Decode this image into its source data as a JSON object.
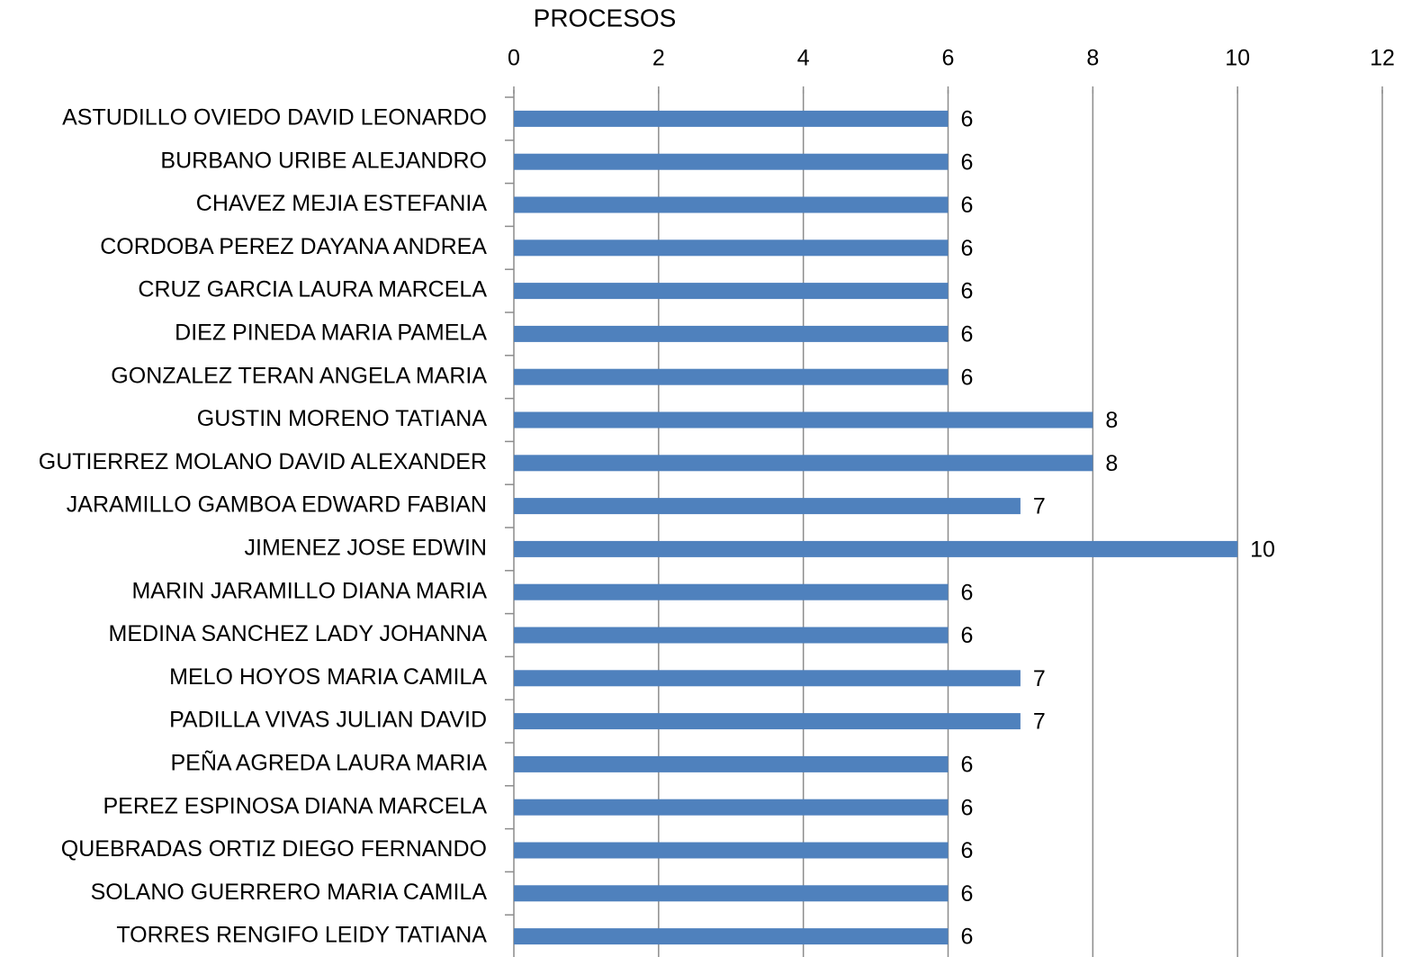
{
  "chart_data": {
    "type": "bar",
    "orientation": "horizontal",
    "title": "PROCESOS",
    "categories": [
      "ASTUDILLO OVIEDO DAVID LEONARDO",
      "BURBANO URIBE ALEJANDRO",
      "CHAVEZ MEJIA ESTEFANIA",
      "CORDOBA PEREZ DAYANA ANDREA",
      "CRUZ GARCIA LAURA MARCELA",
      "DIEZ PINEDA MARIA PAMELA",
      "GONZALEZ TERAN ANGELA MARIA",
      "GUSTIN MORENO TATIANA",
      "GUTIERREZ MOLANO DAVID ALEXANDER",
      "JARAMILLO GAMBOA EDWARD FABIAN",
      "JIMENEZ JOSE EDWIN",
      "MARIN JARAMILLO DIANA MARIA",
      "MEDINA SANCHEZ LADY JOHANNA",
      "MELO HOYOS MARIA CAMILA",
      "PADILLA VIVAS JULIAN DAVID",
      "PEÑA AGREDA LAURA MARIA",
      "PEREZ ESPINOSA DIANA MARCELA",
      "QUEBRADAS ORTIZ DIEGO FERNANDO",
      "SOLANO GUERRERO MARIA CAMILA",
      "TORRES RENGIFO LEIDY TATIANA"
    ],
    "values": [
      6,
      6,
      6,
      6,
      6,
      6,
      6,
      8,
      8,
      7,
      10,
      6,
      6,
      7,
      7,
      6,
      6,
      6,
      6,
      6
    ],
    "color": "#4f81bd",
    "xlim": [
      0,
      12
    ],
    "xticks": [
      0,
      2,
      4,
      6,
      8,
      10,
      12
    ],
    "grid": true
  }
}
